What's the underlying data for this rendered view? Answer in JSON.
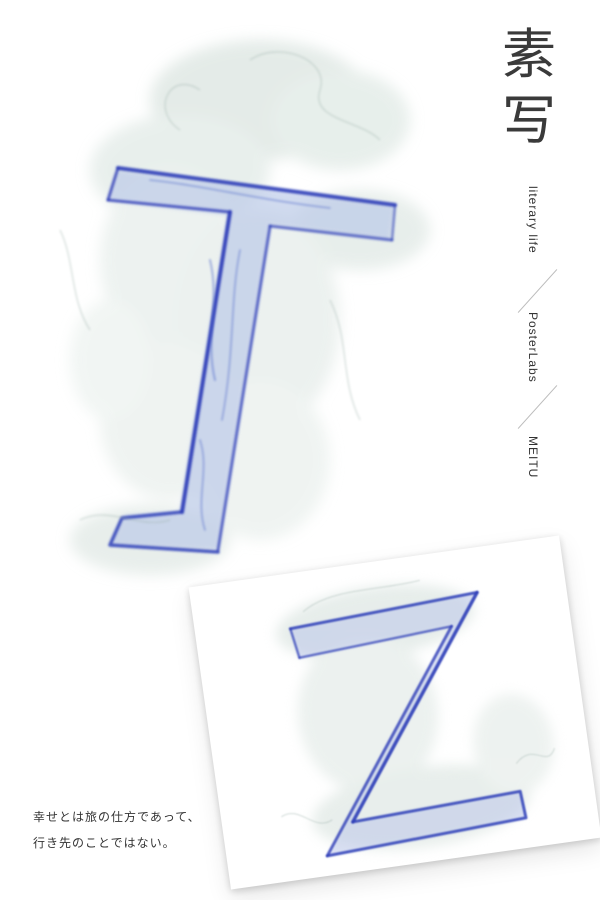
{
  "title": {
    "line1": "素",
    "line2": "写"
  },
  "vertical_labels": [
    "literary life",
    "PosterLabs",
    "MEITU"
  ],
  "hero_letter": "T",
  "card_letter": "Z",
  "quote": {
    "line1": "幸せとは旅の仕方であって、",
    "line2": "行き先のことではない。"
  },
  "colors": {
    "background": "#ffffff",
    "ink_blue": "#2f3fb8",
    "smoke": "#c9d8d2",
    "text": "#333333"
  }
}
